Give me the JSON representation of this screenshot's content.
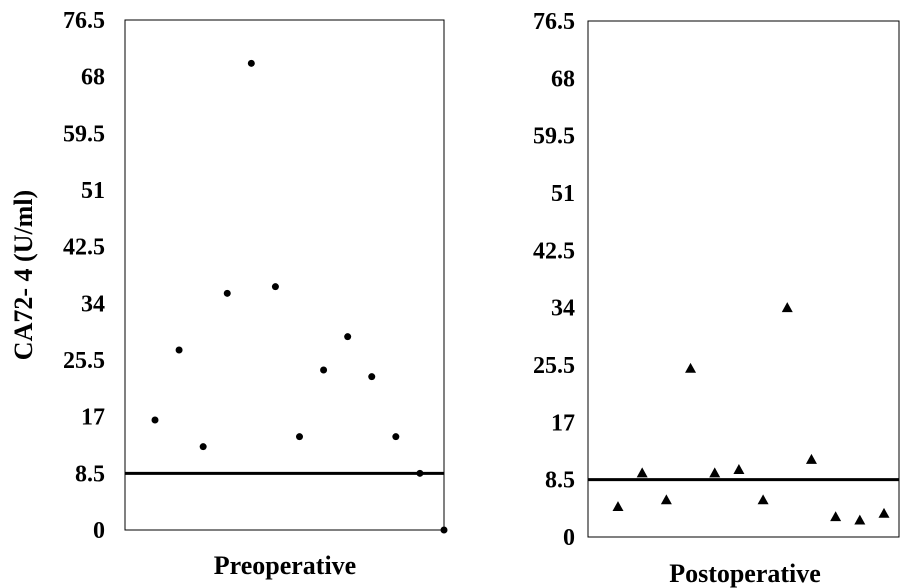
{
  "chart_data": {
    "type": "scatter",
    "ylabel": "CA72- 4 (U/ml)",
    "ylim": [
      0,
      76.5
    ],
    "yticks": [
      "0",
      "8.5",
      "17",
      "25.5",
      "34",
      "42.5",
      "51",
      "59.5",
      "68",
      "76.5"
    ],
    "reference_line": 8.5,
    "panels": [
      {
        "xlabel": "Preoperative",
        "marker": "circle",
        "values": [
          16.5,
          27,
          12.5,
          35.5,
          70,
          36.5,
          14,
          24,
          29,
          23,
          14,
          8.5,
          0
        ]
      },
      {
        "xlabel": "Postoperative",
        "marker": "triangle",
        "values": [
          4.5,
          9.5,
          5.5,
          25,
          9.5,
          10,
          5.5,
          34,
          11.5,
          3,
          2.5,
          3.5
        ]
      }
    ]
  }
}
